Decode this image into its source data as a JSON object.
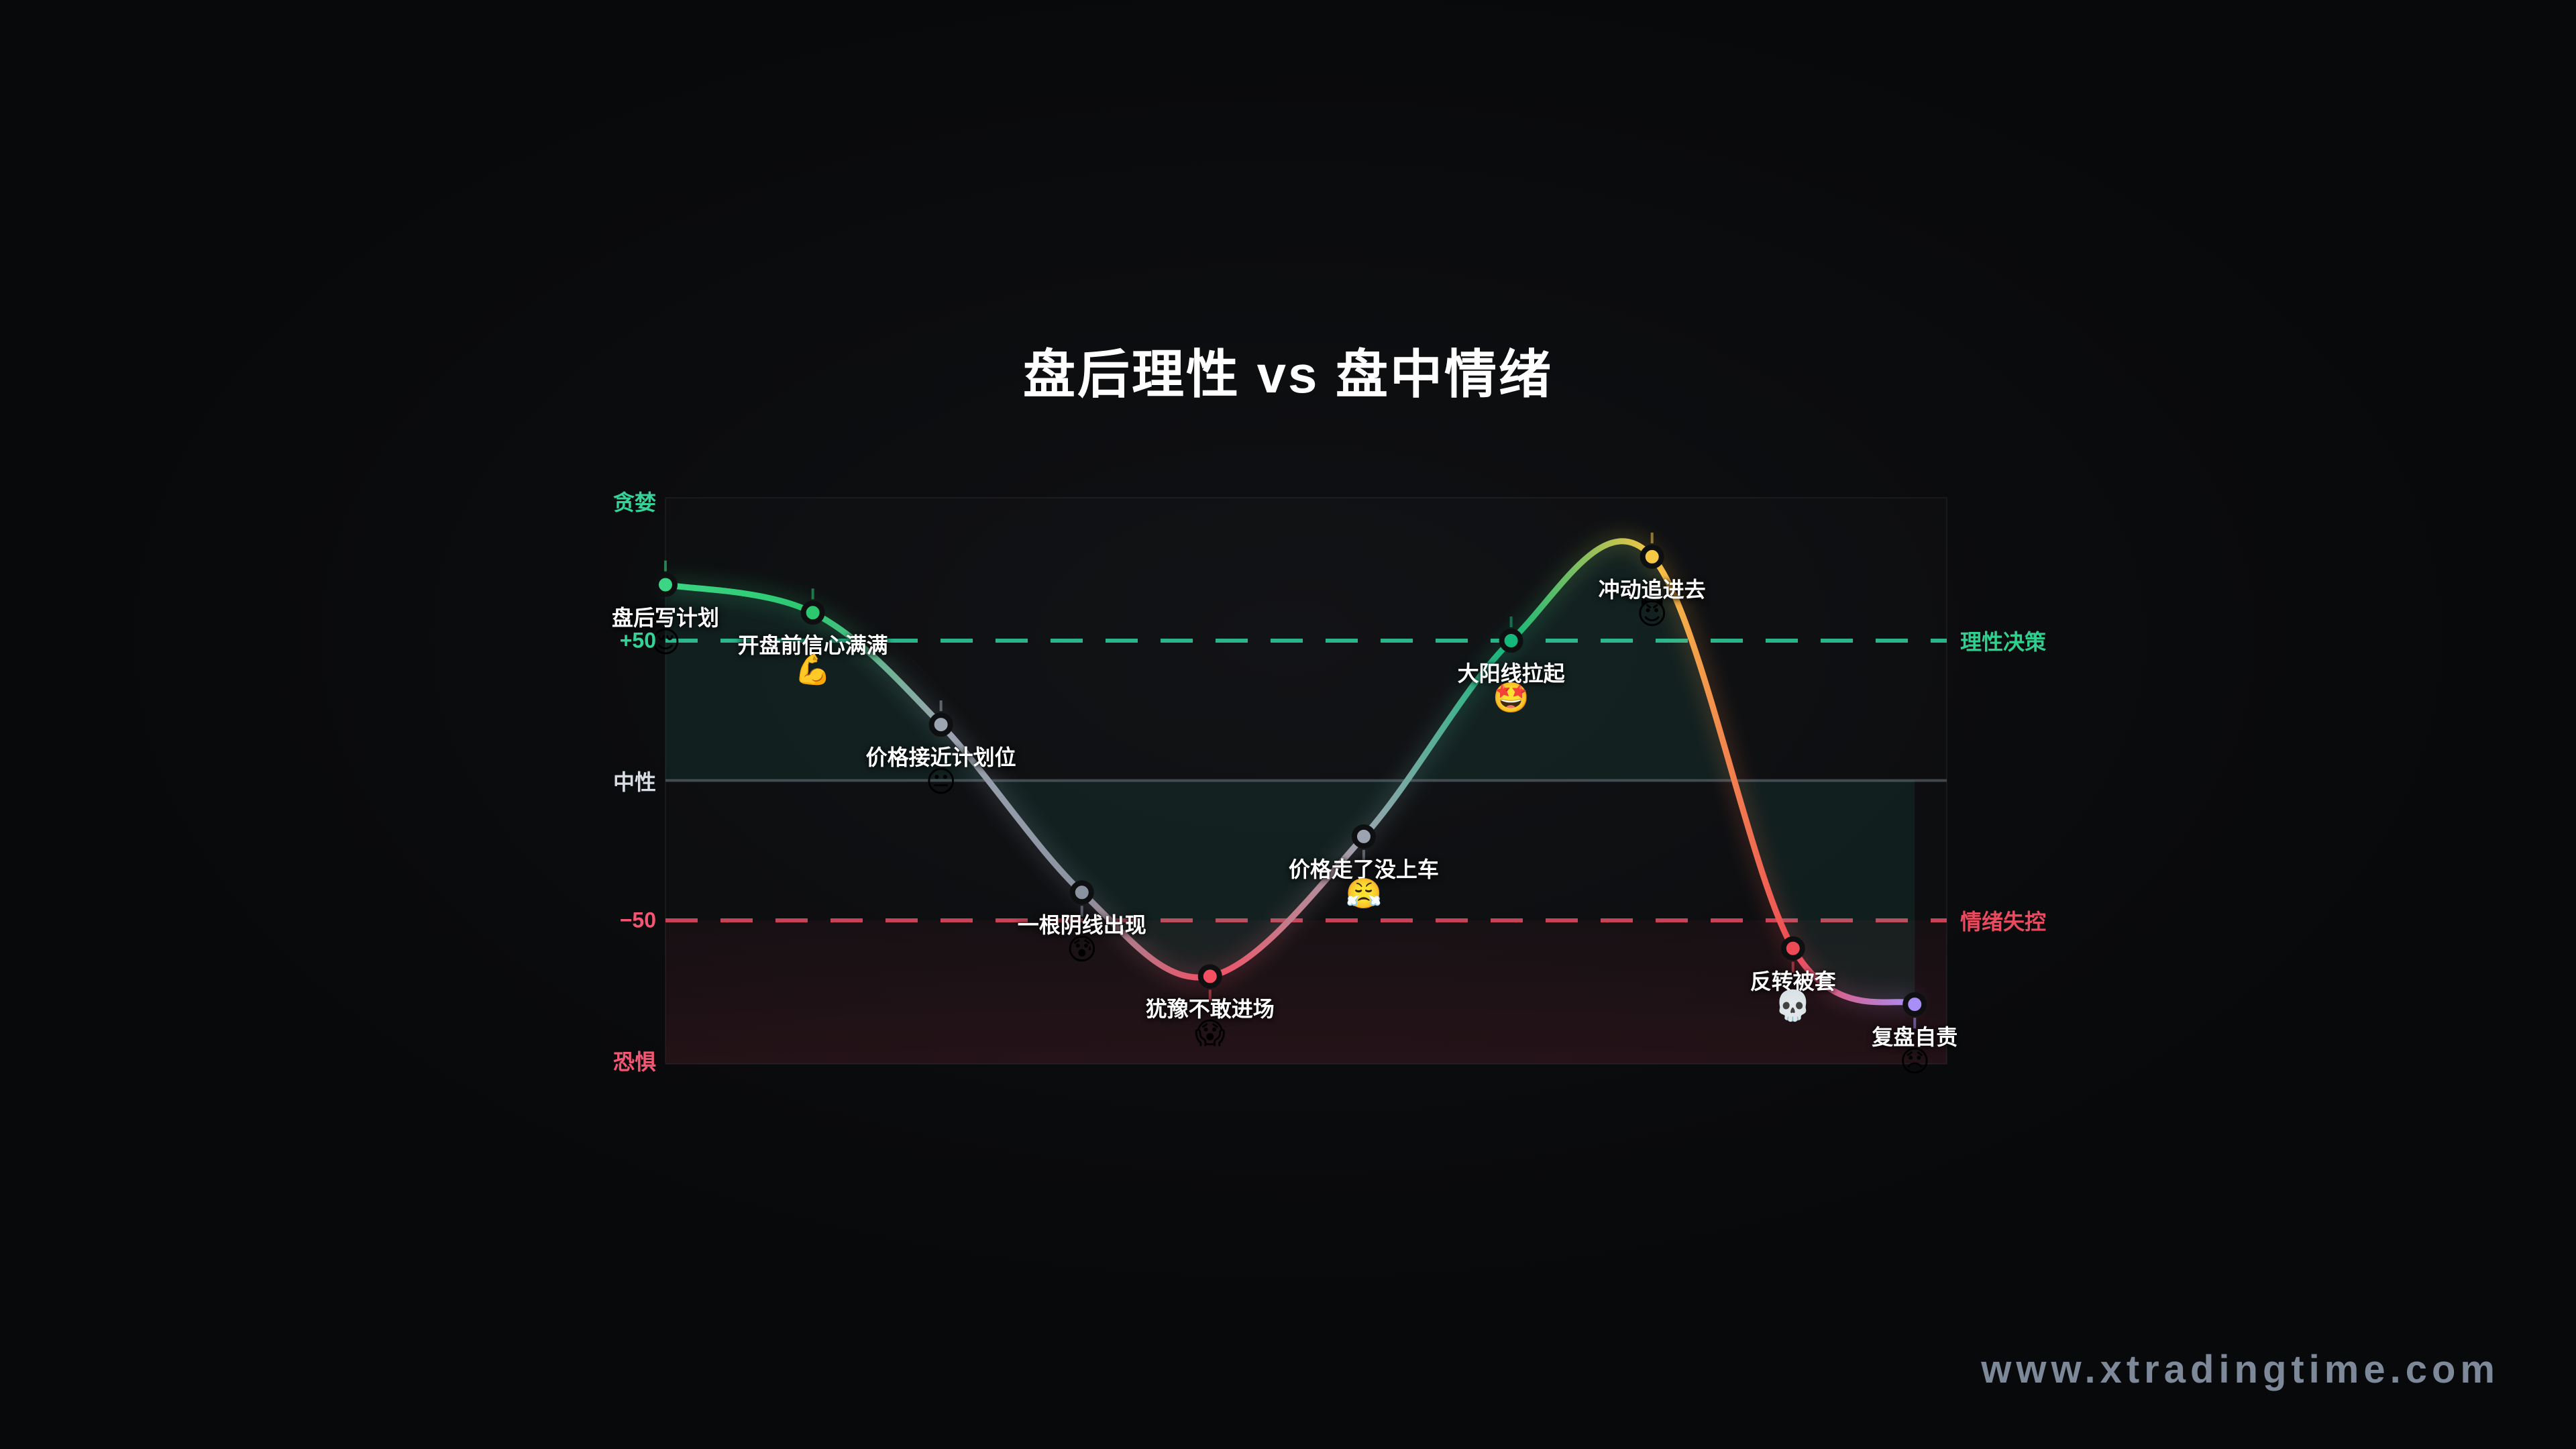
{
  "title": "盘后理性 vs 盘中情绪",
  "watermark": "www.xtradingtime.com",
  "chart_data": {
    "type": "line",
    "title": "盘后理性 vs 盘中情绪",
    "ylim": [
      -100,
      100
    ],
    "grid": false,
    "legend": false,
    "y_axis_labels": [
      {
        "text": "贪婪",
        "value": 100,
        "color": "#34d399"
      },
      {
        "text": "+50",
        "value": 50,
        "color": "#34d399"
      },
      {
        "text": "中性",
        "value": 0,
        "color": "#d9dde3"
      },
      {
        "text": "−50",
        "value": -50,
        "color": "#f25672"
      },
      {
        "text": "恐惧",
        "value": -100,
        "color": "#f25672"
      }
    ],
    "right_labels": [
      {
        "text": "理性决策",
        "value": 50,
        "color": "#2fd08f"
      },
      {
        "text": "情绪失控",
        "value": -50,
        "color": "#e84a60"
      }
    ],
    "reference_lines": [
      {
        "value": 50,
        "style": "dashed",
        "color": "#2bb489"
      },
      {
        "value": 0,
        "style": "solid",
        "color": "#42474e"
      },
      {
        "value": -50,
        "style": "dashed",
        "color": "#c64257"
      }
    ],
    "area_fill": "rgba(56,205,170,0.085)",
    "fear_zone": {
      "from": -50,
      "color_top": "rgba(244,63,94,0.04)",
      "color_bottom": "rgba(244,63,94,0.10)"
    },
    "points": [
      {
        "t": 0.0,
        "value": 70,
        "label": "盘后写计划",
        "emoji": "😌",
        "color": "#3bd585",
        "label_side": "above"
      },
      {
        "t": 0.115,
        "value": 60,
        "label": "开盘前信心满满",
        "emoji": "💪",
        "color": "#2cc86f",
        "label_side": "above"
      },
      {
        "t": 0.215,
        "value": 20,
        "label": "价格接近计划位",
        "emoji": "😐",
        "color": "#9ba4b0",
        "label_side": "above"
      },
      {
        "t": 0.325,
        "value": -40,
        "label": "一根阴线出现",
        "emoji": "😰",
        "color": "#8b93a1",
        "label_side": "below"
      },
      {
        "t": 0.425,
        "value": -70,
        "label": "犹豫不敢进场",
        "emoji": "😱",
        "color": "#f44f63",
        "label_side": "below"
      },
      {
        "t": 0.545,
        "value": -20,
        "label": "价格走了没上车",
        "emoji": "😤",
        "color": "#9ba4b0",
        "label_side": "below"
      },
      {
        "t": 0.66,
        "value": 50,
        "label": "大阳线拉起",
        "emoji": "🤩",
        "color": "#14b87a",
        "label_side": "above"
      },
      {
        "t": 0.77,
        "value": 80,
        "label": "冲动追进去",
        "emoji": "😈",
        "color": "#f6c744",
        "label_side": "above"
      },
      {
        "t": 0.88,
        "value": -60,
        "label": "反转被套",
        "emoji": "💀",
        "color": "#ee4b57",
        "label_side": "below"
      },
      {
        "t": 0.975,
        "value": -80,
        "label": "复盘自责",
        "emoji": "😞",
        "color": "#a98ef7",
        "label_side": "below"
      }
    ]
  }
}
